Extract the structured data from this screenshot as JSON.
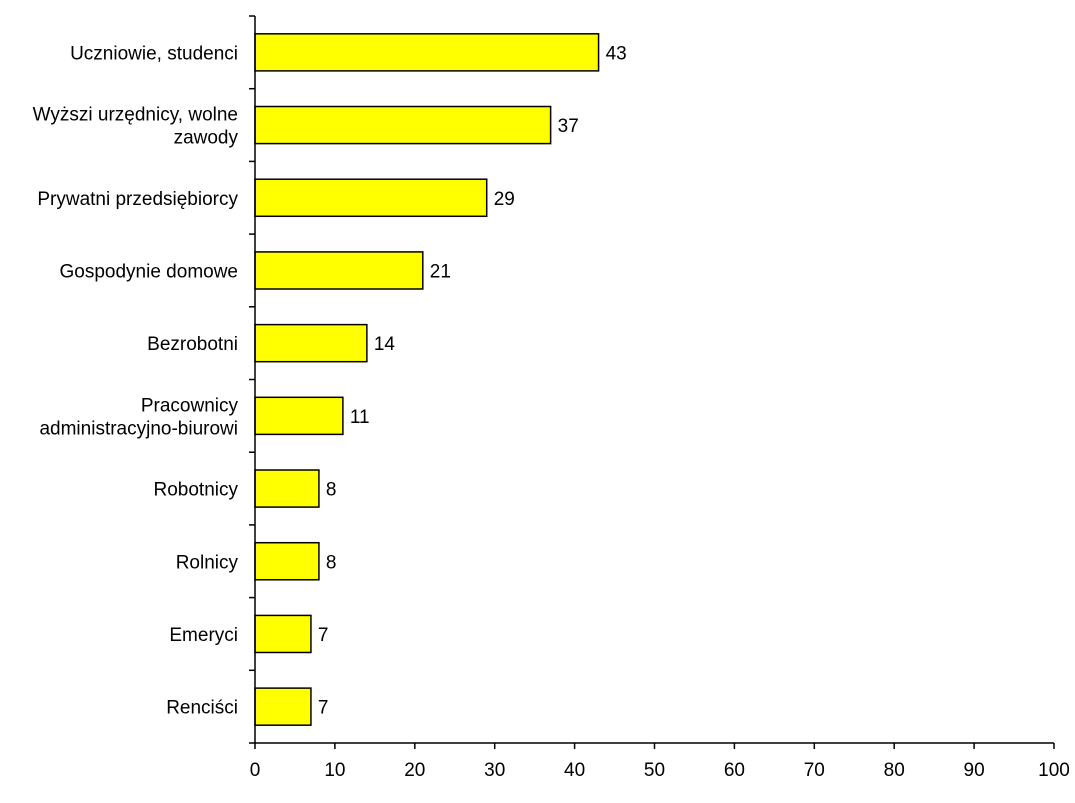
{
  "chart_data": {
    "type": "bar",
    "orientation": "horizontal",
    "categories": [
      [
        "Uczniowie, studenci"
      ],
      [
        "Wyższi urzędnicy, wolne",
        "zawody"
      ],
      [
        "Prywatni przedsiębiorcy"
      ],
      [
        "Gospodynie domowe"
      ],
      [
        "Bezrobotni"
      ],
      [
        "Pracownicy",
        "administracyjno-biurowi"
      ],
      [
        "Robotnicy"
      ],
      [
        "Rolnicy"
      ],
      [
        "Emeryci"
      ],
      [
        "Renciści"
      ]
    ],
    "values": [
      43,
      37,
      29,
      21,
      14,
      11,
      8,
      8,
      7,
      7
    ],
    "data_labels": [
      "43",
      "37",
      "29",
      "21",
      "14",
      "11",
      "8",
      "8",
      "7",
      "7"
    ],
    "xlim": [
      0,
      100
    ],
    "x_ticks": [
      0,
      10,
      20,
      30,
      40,
      50,
      60,
      70,
      80,
      90,
      100
    ],
    "x_tick_labels": [
      "0",
      "10",
      "20",
      "30",
      "40",
      "50",
      "60",
      "70",
      "80",
      "90",
      "100"
    ],
    "title": "",
    "xlabel": "",
    "ylabel": "",
    "grid": false,
    "legend": "none",
    "colors": {
      "bar_fill": "#FFFF00",
      "bar_stroke": "#000000",
      "axis": "#000000"
    }
  }
}
